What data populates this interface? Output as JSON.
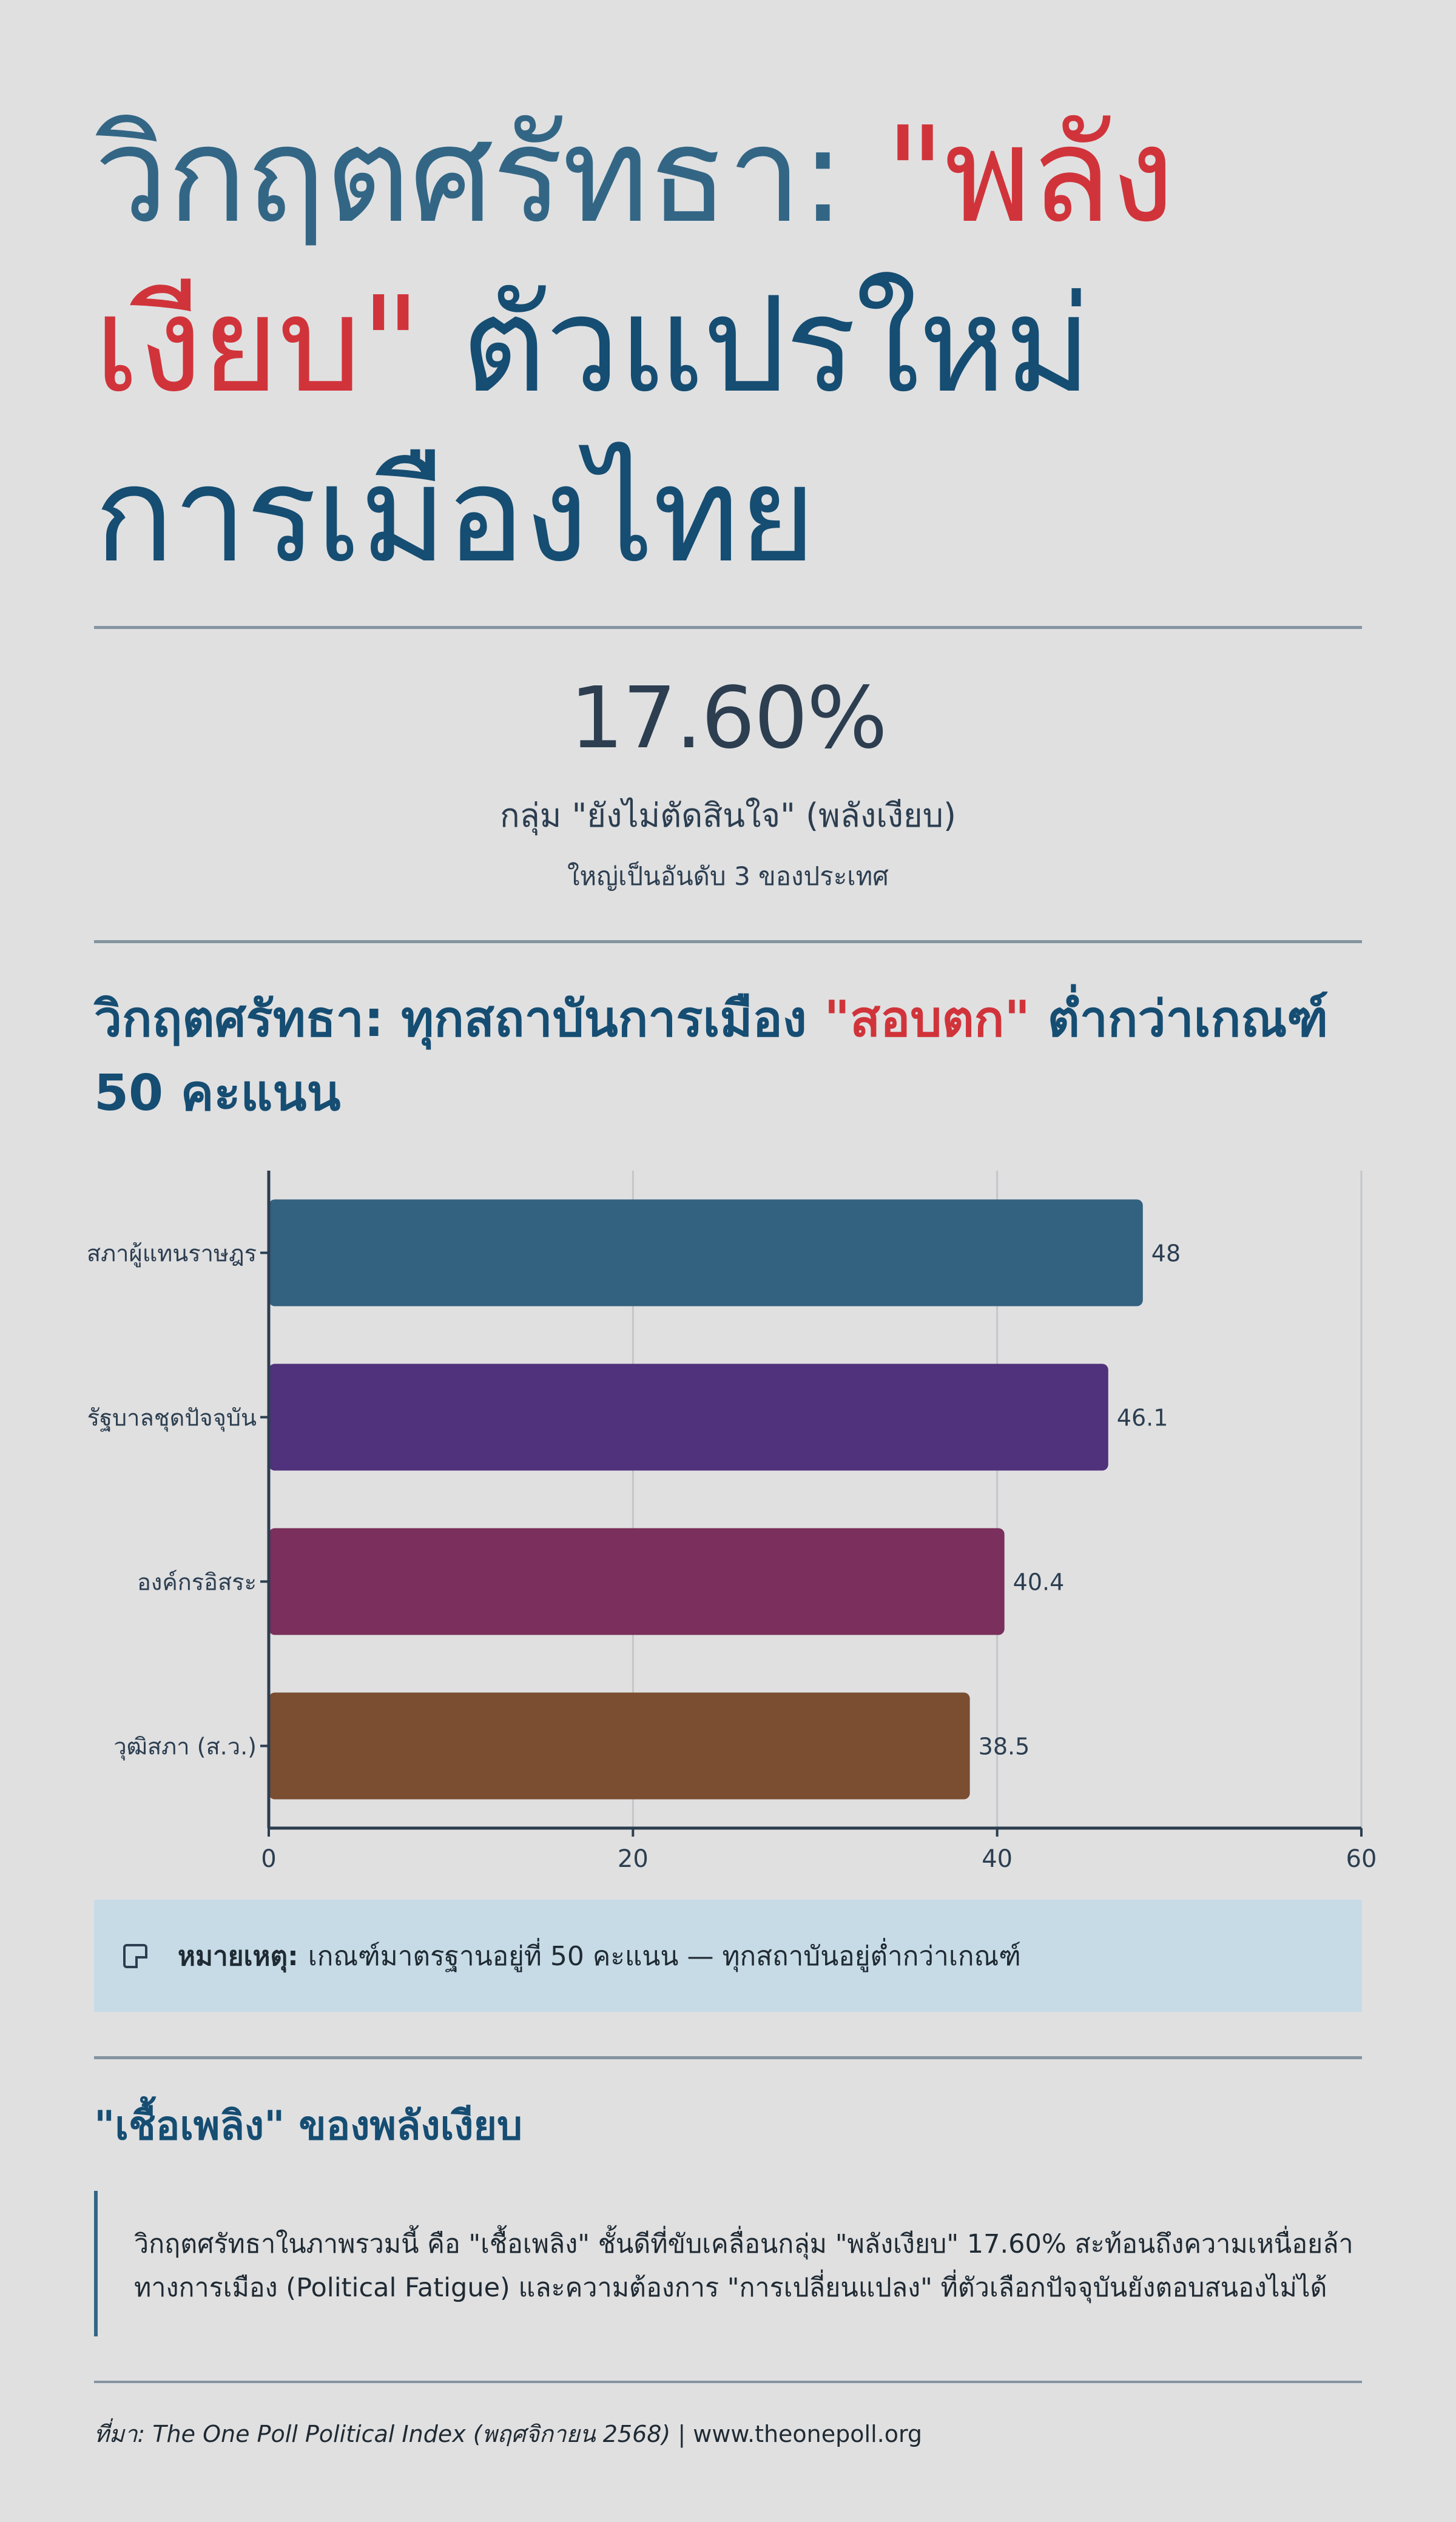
{
  "title": {
    "part1": "วิกฤตศรัทธา: ",
    "highlight": "\"พลังเงียบ\"",
    "part2": " ตัวแปรใหม่การเมืองไทย"
  },
  "stat": {
    "value": "17.60%",
    "label": "กลุ่ม \"ยังไม่ตัดสินใจ\" (พลังเงียบ)",
    "sub": "ใหญ่เป็นอันดับ 3 ของประเทศ"
  },
  "section": {
    "title_part1": "วิกฤตศรัทธา: ทุกสถาบันการเมือง ",
    "title_highlight": "\"สอบตก\"",
    "title_part2": " ต่ำกว่าเกณฑ์ 50 คะแนน"
  },
  "chart_data": {
    "type": "bar",
    "orientation": "horizontal",
    "categories": [
      "สภาผู้แทนราษฎร",
      "รัฐบาลชุดปัจจุบัน",
      "องค์กรอิสระ",
      "วุฒิสภา (ส.ว.)"
    ],
    "values": [
      48,
      46.1,
      40.4,
      38.5
    ],
    "value_labels": [
      "48",
      "46.1",
      "40.4",
      "38.5"
    ],
    "colors": [
      "#336180",
      "#4f327b",
      "#7a2f5c",
      "#7b4e31"
    ],
    "xlim": [
      0,
      60
    ],
    "xticks": [
      0,
      20,
      40,
      60
    ],
    "xtick_labels": [
      "0",
      "20",
      "40",
      "60"
    ],
    "grid": true
  },
  "note": {
    "icon": "note-icon",
    "label": "หมายเหตุ:",
    "text": "เกณฑ์มาตรฐานอยู่ที่ 50 คะแนน — ทุกสถาบันอยู่ต่ำกว่าเกณฑ์"
  },
  "fuel": {
    "title": "\"เชื้อเพลิง\" ของพลังเงียบ",
    "line1": "วิกฤตศรัทธาในภาพรวมนี้ คือ \"เชื้อเพลิง\" ชั้นดีที่ขับเคลื่อนกลุ่ม \"พลังเงียบ\" 17.60% สะท้อนถึงความเหนื่อยล้า",
    "line2": "ทางการเมือง (Political Fatigue) และความต้องการ \"การเปลี่ยนแปลง\" ที่ตัวเลือกปัจจุบันยังตอบสนองไม่ได้"
  },
  "footer": {
    "source": "ที่มา: The One Poll Political Index (พฤศจิกายน 2568)",
    "separator": " | ",
    "url": "www.theonepoll.org"
  },
  "colors": {
    "background": "#e0e0e1",
    "primary": "#164d72",
    "accent": "#d0343a",
    "note_bg": "#c7dbe6"
  }
}
